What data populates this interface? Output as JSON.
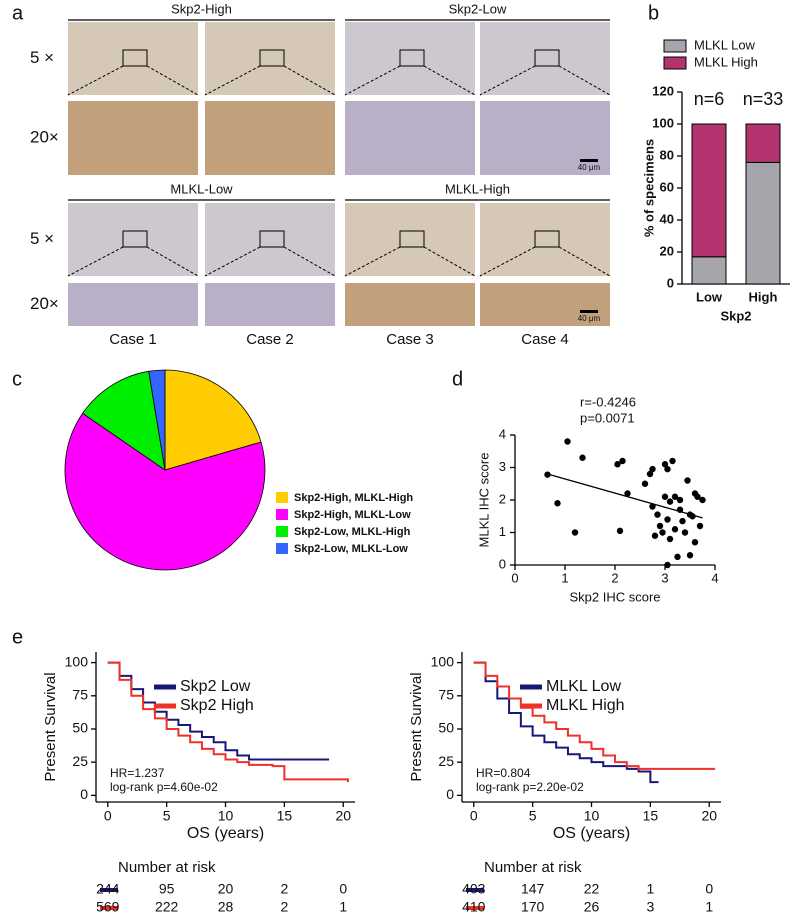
{
  "panel_labels": [
    "a",
    "b",
    "c",
    "d",
    "e"
  ],
  "micrographs": {
    "groups": [
      "Skp2-High",
      "Skp2-Low",
      "MLKL-Low",
      "MLKL-High"
    ],
    "magnifications": [
      "5 ×",
      "20×",
      "5 ×",
      "20×"
    ],
    "cases": [
      "Case 1",
      "Case 2",
      "Case 3",
      "Case 4"
    ],
    "scale_bars": [
      "40 μm",
      "40 μm"
    ]
  },
  "chart_data": [
    {
      "type": "bar",
      "stacked": true,
      "categories": [
        "Low",
        "High"
      ],
      "x_label": "Skp2",
      "y_label": "% of specimens",
      "annotations": [
        "n=6",
        "n=33"
      ],
      "series": [
        {
          "name": "MLKL Low",
          "color": "#a5a5ab",
          "values": [
            17,
            76
          ]
        },
        {
          "name": "MLKL High",
          "color": "#b3336f",
          "values": [
            83,
            24
          ]
        }
      ],
      "ylim": [
        0,
        120
      ],
      "yticks": [
        0,
        20,
        40,
        60,
        80,
        100,
        120
      ]
    },
    {
      "type": "pie",
      "categories": [
        "Skp2-High, MLKL-High",
        "Skp2-High, MLKL-Low",
        "Skp2-Low, MLKL-High",
        "Skp2-Low, MLKL-Low"
      ],
      "values": [
        20.5,
        64.1,
        12.8,
        2.6
      ],
      "colors": [
        "#ffcc00",
        "#ff00ff",
        "#00ee00",
        "#3366ff"
      ]
    },
    {
      "type": "scatter",
      "x_label": "Skp2 IHC score",
      "y_label": "MLKL IHC score",
      "annotations": [
        "r=-0.4246",
        "p=0.0071"
      ],
      "x": [
        0.65,
        0.85,
        1.05,
        1.2,
        1.35,
        2.05,
        2.1,
        2.15,
        2.25,
        2.6,
        2.7,
        2.75,
        2.75,
        2.8,
        2.85,
        2.9,
        2.95,
        3.0,
        3.0,
        3.05,
        3.05,
        3.1,
        3.1,
        3.15,
        3.2,
        3.2,
        3.25,
        3.3,
        3.3,
        3.35,
        3.4,
        3.45,
        3.5,
        3.5,
        3.55,
        3.6,
        3.6,
        3.65,
        3.7,
        3.75,
        3.05
      ],
      "values": [
        2.78,
        1.9,
        3.8,
        1.0,
        3.3,
        3.1,
        1.05,
        3.2,
        2.2,
        2.5,
        2.8,
        2.95,
        1.8,
        0.9,
        1.55,
        1.2,
        1.0,
        3.1,
        2.1,
        1.4,
        0.0,
        1.95,
        0.8,
        3.2,
        2.1,
        1.1,
        0.25,
        2.0,
        1.7,
        1.35,
        1.0,
        2.6,
        1.55,
        0.3,
        1.5,
        2.2,
        0.7,
        2.1,
        1.2,
        2.0,
        2.95
      ],
      "fit": {
        "x": [
          0.65,
          3.75
        ],
        "values": [
          2.8,
          1.45
        ]
      },
      "xlim": [
        0,
        4
      ],
      "ylim": [
        0,
        4
      ],
      "xticks": [
        0,
        1,
        2,
        3,
        4
      ],
      "yticks": [
        0,
        1,
        2,
        3,
        4
      ]
    },
    {
      "type": "line",
      "step": true,
      "x_label": "OS (years)",
      "y_label": "Present Survival",
      "annotations": [
        "HR=1.237",
        "log-rank p=4.60e-02"
      ],
      "risk_title": "Number at risk",
      "series": [
        {
          "name": "Skp2 Low",
          "color": "#17177a",
          "x": [
            0,
            1,
            2,
            3,
            4,
            5,
            6,
            7,
            8,
            9,
            10,
            11,
            12,
            18.8
          ],
          "values": [
            100,
            90,
            80,
            70,
            63,
            57,
            53,
            48,
            44,
            40,
            34,
            30,
            27,
            27
          ],
          "at_risk": [
            244,
            95,
            20,
            2,
            0
          ]
        },
        {
          "name": "Skp2 High",
          "color": "#f0302a",
          "x": [
            0,
            1,
            2,
            3,
            4,
            5,
            6,
            7,
            8,
            9,
            10,
            11,
            12,
            14,
            15,
            20.4
          ],
          "values": [
            100,
            87,
            75,
            65,
            58,
            50,
            45,
            40,
            35,
            31,
            27,
            25,
            23,
            22,
            12,
            10
          ],
          "at_risk": [
            569,
            222,
            28,
            2,
            1
          ]
        }
      ],
      "xlim": [
        -1,
        21
      ],
      "ylim": [
        -5,
        108
      ],
      "xticks": [
        0,
        5,
        10,
        15,
        20
      ],
      "yticks": [
        0,
        25,
        50,
        75,
        100
      ]
    },
    {
      "type": "line",
      "step": true,
      "x_label": "OS (years)",
      "y_label": "Present Survival",
      "annotations": [
        "HR=0.804",
        "log-rank p=2.20e-02"
      ],
      "risk_title": "Number at risk",
      "series": [
        {
          "name": "MLKL Low",
          "color": "#17177a",
          "x": [
            0,
            1,
            2,
            3,
            4,
            5,
            6,
            7,
            8,
            9,
            10,
            11,
            13,
            14,
            15,
            15.7
          ],
          "values": [
            100,
            86,
            73,
            62,
            52,
            45,
            40,
            36,
            31,
            28,
            25,
            22,
            20,
            18,
            10,
            10
          ],
          "at_risk": [
            403,
            147,
            22,
            1,
            0
          ]
        },
        {
          "name": "MLKL High",
          "color": "#f0302a",
          "x": [
            0,
            1,
            2,
            3,
            4,
            5,
            6,
            7,
            8,
            9,
            10,
            11,
            12,
            13,
            14,
            20.5
          ],
          "values": [
            100,
            90,
            82,
            73,
            66,
            60,
            55,
            50,
            45,
            40,
            35,
            30,
            25,
            22,
            20,
            20
          ],
          "at_risk": [
            410,
            170,
            26,
            3,
            1
          ]
        }
      ],
      "xlim": [
        -1,
        21
      ],
      "ylim": [
        -5,
        108
      ],
      "xticks": [
        0,
        5,
        10,
        15,
        20
      ],
      "yticks": [
        0,
        25,
        50,
        75,
        100
      ]
    }
  ]
}
